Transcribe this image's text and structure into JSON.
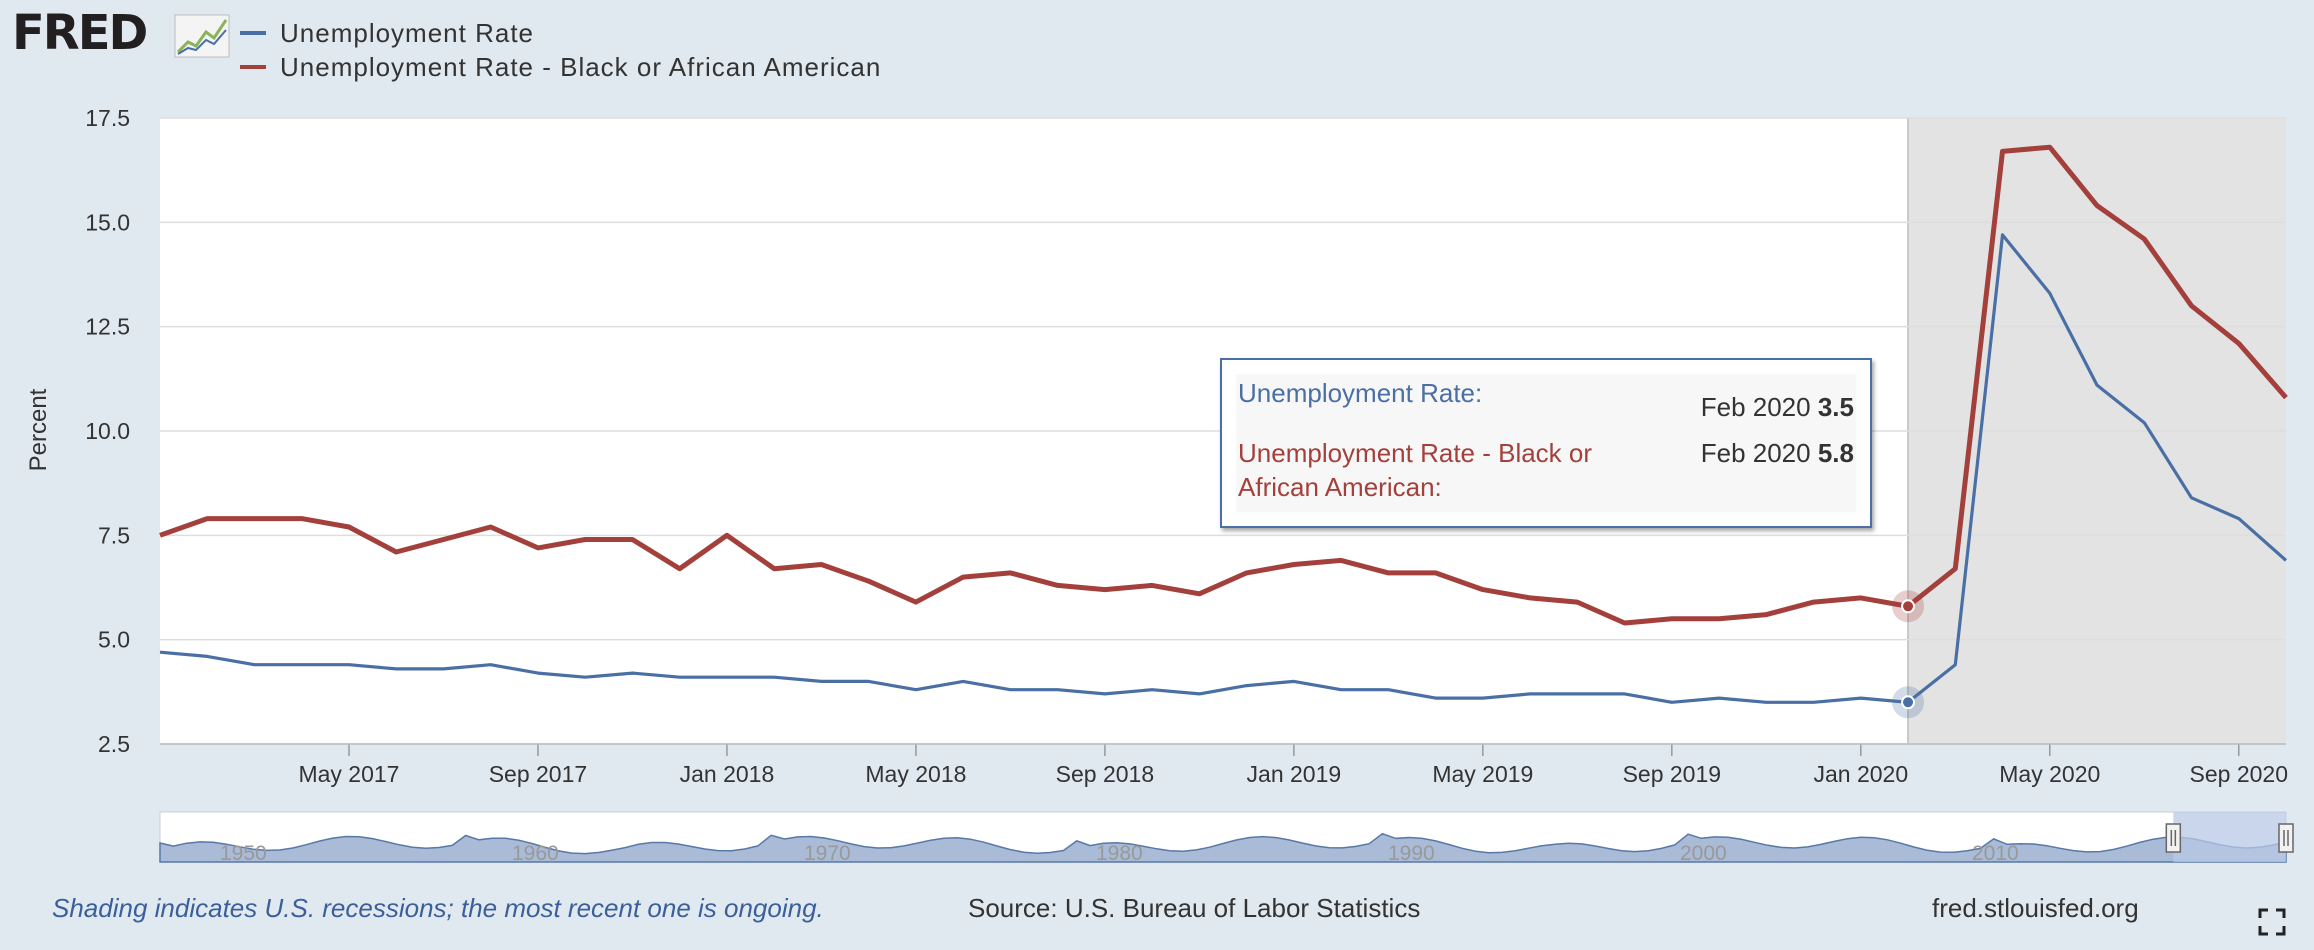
{
  "header": {
    "logo_text": "FRED",
    "logo_icon": "fred-line-chart-icon"
  },
  "chart_data": {
    "type": "line",
    "ylabel": "Percent",
    "ylim": [
      2.5,
      17.5
    ],
    "yticks": [
      "2.5",
      "5.0",
      "7.5",
      "10.0",
      "12.5",
      "15.0",
      "17.5"
    ],
    "xlim": [
      "2017-01",
      "2020-10"
    ],
    "xticks": [
      {
        "label": "May 2017",
        "date": "2017-05"
      },
      {
        "label": "Sep 2017",
        "date": "2017-09"
      },
      {
        "label": "Jan 2018",
        "date": "2018-01"
      },
      {
        "label": "May 2018",
        "date": "2018-05"
      },
      {
        "label": "Sep 2018",
        "date": "2018-09"
      },
      {
        "label": "Jan 2019",
        "date": "2019-01"
      },
      {
        "label": "May 2019",
        "date": "2019-05"
      },
      {
        "label": "Sep 2019",
        "date": "2019-09"
      },
      {
        "label": "Jan 2020",
        "date": "2020-01"
      },
      {
        "label": "May 2020",
        "date": "2020-05"
      },
      {
        "label": "Sep 2020",
        "date": "2020-09"
      }
    ],
    "x": [
      "2017-01",
      "2017-02",
      "2017-03",
      "2017-04",
      "2017-05",
      "2017-06",
      "2017-07",
      "2017-08",
      "2017-09",
      "2017-10",
      "2017-11",
      "2017-12",
      "2018-01",
      "2018-02",
      "2018-03",
      "2018-04",
      "2018-05",
      "2018-06",
      "2018-07",
      "2018-08",
      "2018-09",
      "2018-10",
      "2018-11",
      "2018-12",
      "2019-01",
      "2019-02",
      "2019-03",
      "2019-04",
      "2019-05",
      "2019-06",
      "2019-07",
      "2019-08",
      "2019-09",
      "2019-10",
      "2019-11",
      "2019-12",
      "2020-01",
      "2020-02",
      "2020-03",
      "2020-04",
      "2020-05",
      "2020-06",
      "2020-07",
      "2020-08",
      "2020-09",
      "2020-10"
    ],
    "series": [
      {
        "name": "Unemployment Rate",
        "color": "#4a6fa5",
        "values": [
          4.7,
          4.6,
          4.4,
          4.4,
          4.4,
          4.3,
          4.3,
          4.4,
          4.2,
          4.1,
          4.2,
          4.1,
          4.1,
          4.1,
          4.0,
          4.0,
          3.8,
          4.0,
          3.8,
          3.8,
          3.7,
          3.8,
          3.7,
          3.9,
          4.0,
          3.8,
          3.8,
          3.6,
          3.6,
          3.7,
          3.7,
          3.7,
          3.5,
          3.6,
          3.5,
          3.5,
          3.6,
          3.5,
          4.4,
          14.7,
          13.3,
          11.1,
          10.2,
          8.4,
          7.9,
          6.9
        ]
      },
      {
        "name": "Unemployment Rate - Black or African American",
        "color": "#a4403c",
        "values": [
          7.5,
          7.9,
          7.9,
          7.9,
          7.7,
          7.1,
          7.4,
          7.7,
          7.2,
          7.4,
          7.4,
          6.7,
          7.5,
          6.7,
          6.8,
          6.4,
          5.9,
          6.5,
          6.6,
          6.3,
          6.2,
          6.3,
          6.1,
          6.6,
          6.8,
          6.9,
          6.6,
          6.6,
          6.2,
          6.0,
          5.9,
          5.4,
          5.5,
          5.5,
          5.6,
          5.9,
          6.0,
          5.8,
          6.7,
          16.7,
          16.8,
          15.4,
          14.6,
          13.0,
          12.1,
          10.8
        ]
      }
    ],
    "recession": {
      "start": "2020-02",
      "end": "2020-10"
    },
    "hover": {
      "date": "2020-02"
    },
    "grid": true,
    "legend_placement": "top-left"
  },
  "tooltip": {
    "rows": [
      {
        "name": "Unemployment Rate:",
        "date": "Feb 2020",
        "value": "3.5"
      },
      {
        "name": "Unemployment Rate - Black or African American:",
        "date": "Feb 2020",
        "value": "5.8"
      }
    ]
  },
  "navigator": {
    "labels": [
      "1950",
      "1960",
      "1970",
      "1980",
      "1990",
      "2000",
      "2010"
    ],
    "selection_start_fraction": 0.947,
    "selection_end_fraction": 1.0,
    "handle_icon": "grip-handle-icon"
  },
  "footer": {
    "recession_note": "Shading indicates U.S. recessions; the most recent one is ongoing.",
    "source": "Source: U.S. Bureau of Labor Statistics",
    "site": "fred.stlouisfed.org",
    "fullscreen_icon": "fullscreen-expand-icon"
  }
}
